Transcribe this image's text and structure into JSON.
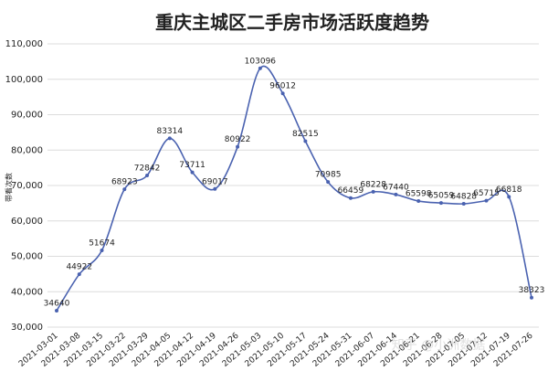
{
  "chart_data": {
    "type": "line",
    "title": "重庆主城区二手房市场活跃度趋势",
    "y_label": "带看次数",
    "categories": [
      "2021-03-01",
      "2021-03-08",
      "2021-03-15",
      "2021-03-22",
      "2021-03-29",
      "2021-04-05",
      "2021-04-12",
      "2021-04-19",
      "2021-04-26",
      "2021-05-03",
      "2021-05-10",
      "2021-05-17",
      "2021-05-24",
      "2021-05-31",
      "2021-06-07",
      "2021-06-14",
      "2021-06-21",
      "2021-06-28",
      "2021-07-05",
      "2021-07-12",
      "2021-07-19",
      "2021-07-26"
    ],
    "values": [
      34640,
      44922,
      51674,
      68923,
      72842,
      83314,
      73711,
      69017,
      80922,
      103096,
      96012,
      82515,
      70985,
      66459,
      68228,
      67440,
      65598,
      65059,
      64828,
      65715,
      66818,
      38323
    ],
    "color": "#4a62b0",
    "ylim": [
      30000,
      110000
    ],
    "yticks": [
      {
        "value": 30000,
        "label": "30,000"
      },
      {
        "value": 40000,
        "label": "40,000"
      },
      {
        "value": 50000,
        "label": "50,000"
      },
      {
        "value": 60000,
        "label": "60,000"
      },
      {
        "value": 70000,
        "label": "70,000"
      },
      {
        "value": 80000,
        "label": "80,000"
      },
      {
        "value": 90000,
        "label": "90,000"
      },
      {
        "value": 100000,
        "label": "100,000"
      },
      {
        "value": 110000,
        "label": "110,000"
      }
    ],
    "grid": true,
    "watermark": "知乎 @小洲数据"
  }
}
